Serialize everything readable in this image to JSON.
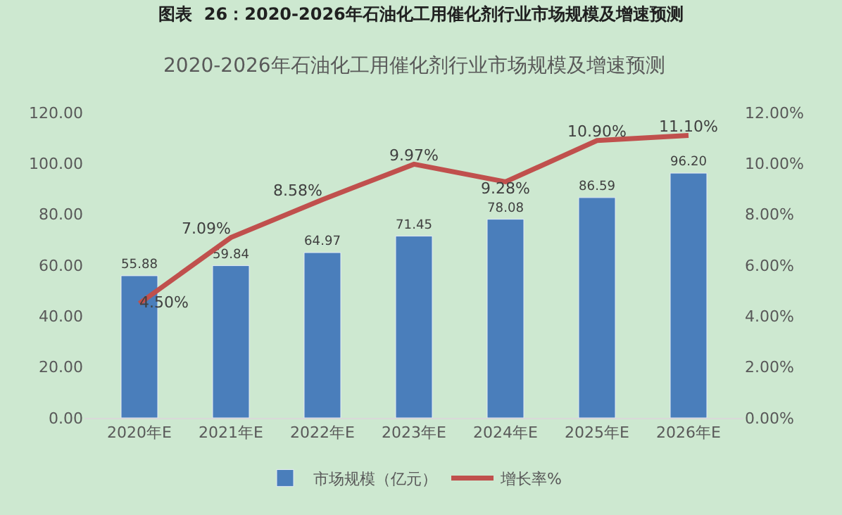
{
  "chart_data": {
    "type": "bar",
    "title": "图表  26：2020-2026年石油化工用催化剂行业市场规模及增速预测",
    "subtitle": "2020-2026年石油化工用催化剂行业市场规模及增速预测",
    "categories": [
      "2020年E",
      "2021年E",
      "2022年E",
      "2023年E",
      "2024年E",
      "2025年E",
      "2026年E"
    ],
    "series": [
      {
        "name": "市场规模（亿元）",
        "color": "#4a7ebb",
        "values": [
          55.88,
          59.84,
          64.97,
          71.45,
          78.08,
          86.59,
          96.2
        ],
        "value_labels": [
          "55.88",
          "59.84",
          "64.97",
          "71.45",
          "78.08",
          "86.59",
          "96.20"
        ]
      },
      {
        "name": "增长率%",
        "type": "line",
        "axis": "y2",
        "color": "#c0504d",
        "values": [
          4.5,
          7.09,
          8.58,
          9.97,
          9.28,
          10.9,
          11.1
        ],
        "value_labels": [
          "4.50%",
          "7.09%",
          "8.58%",
          "9.97%",
          "9.28%",
          "10.90%",
          "11.10%"
        ]
      }
    ],
    "ylim": [
      0,
      120
    ],
    "yticks": [
      {
        "value": 0,
        "label": "0.00"
      },
      {
        "value": 20,
        "label": "20.00"
      },
      {
        "value": 40,
        "label": "40.00"
      },
      {
        "value": 60,
        "label": "60.00"
      },
      {
        "value": 80,
        "label": "80.00"
      },
      {
        "value": 100,
        "label": "100.00"
      },
      {
        "value": 120,
        "label": "120.00"
      }
    ],
    "y2lim": [
      0,
      12
    ],
    "y2ticks": [
      {
        "value": 0,
        "label": "0.00%"
      },
      {
        "value": 2,
        "label": "2.00%"
      },
      {
        "value": 4,
        "label": "4.00%"
      },
      {
        "value": 6,
        "label": "6.00%"
      },
      {
        "value": 8,
        "label": "8.00%"
      },
      {
        "value": 10,
        "label": "10.00%"
      },
      {
        "value": 12,
        "label": "12.00%"
      }
    ],
    "legend": "bottom",
    "grid": false,
    "marker": "none",
    "line_style": "solid"
  }
}
